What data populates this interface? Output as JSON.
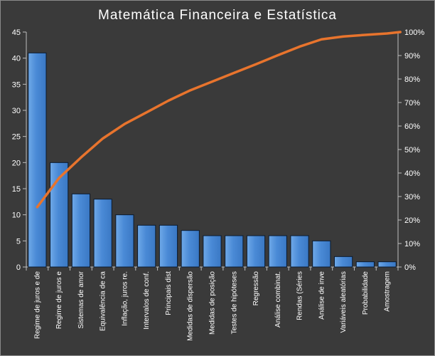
{
  "chart_data": {
    "type": "bar",
    "title": "Matemática  Financeira  e  Estatística",
    "categories": [
      "Regime de juros e de",
      "Regime de juros e",
      "Sistemas de amor",
      "Equivalência de ca",
      "Inflação, juros re.",
      "Intervalos de conf.",
      "Principais dist",
      "Medidas de dispersão",
      "Medidas de posição",
      "Testes de hipóteses",
      "Regressão",
      "Análise combinat.",
      "Rendas (Séries",
      "Análise de inve",
      "Variáveis aleatórias",
      "Probabilidade",
      "Amostragem"
    ],
    "series": [
      {
        "type": "bar",
        "axis": "left",
        "values": [
          41,
          20,
          14,
          13,
          10,
          8,
          8,
          7,
          6,
          6,
          6,
          6,
          6,
          5,
          2,
          1,
          1
        ]
      },
      {
        "type": "line",
        "axis": "right",
        "unit": "%",
        "values": [
          25.5,
          37.9,
          46.6,
          54.7,
          60.9,
          65.8,
          70.8,
          75.2,
          78.9,
          82.6,
          86.3,
          90.1,
          93.8,
          96.9,
          98.1,
          98.8,
          99.4
        ]
      }
    ],
    "y_left": {
      "min": 0,
      "max": 45,
      "ticks": [
        "0",
        "5",
        "10",
        "15",
        "20",
        "25",
        "30",
        "35",
        "40",
        "45"
      ]
    },
    "y_right": {
      "min": 0,
      "max": 100,
      "ticks": [
        "0%",
        "10%",
        "20%",
        "30%",
        "40%",
        "50%",
        "60%",
        "70%",
        "80%",
        "90%",
        "100%"
      ]
    },
    "grid": false,
    "legend": "none",
    "colors": {
      "background": "#3a3a3a",
      "bar_fill": "#4f8fd9",
      "bar_stroke": "#0a1a2e",
      "line": "#e8742d",
      "axis": "#bfbfbf",
      "text": "#ffffff"
    }
  }
}
